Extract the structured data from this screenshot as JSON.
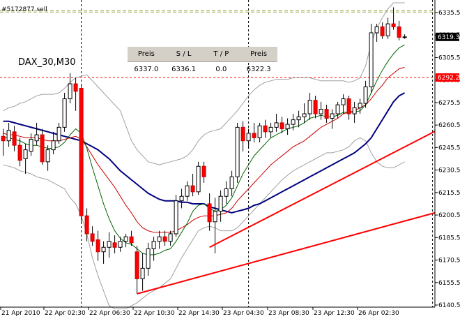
{
  "chart_data": {
    "type": "candlestick",
    "symbol": "DAX_30,M30",
    "order_label": "#5172877 sell",
    "ylim": [
      6137,
      6342
    ],
    "y_ticks": [
      6140.5,
      6155.5,
      6170.5,
      6185.5,
      6200.5,
      6215.5,
      6230.5,
      6245.5,
      6260.5,
      6275.5,
      6290.5,
      6305.5,
      6320.5,
      6335.5
    ],
    "y_tick_labels": [
      "6140.5",
      "6155.5",
      "6170.5",
      "6185.5",
      "6200.5",
      "6215.5",
      "6230.5",
      "6245.5",
      "6260.5",
      "6275.5",
      "6290.5",
      "6305.5",
      "6320.5",
      "6335.5"
    ],
    "x_labels": [
      "21 Apr 2010",
      "22 Apr 02:30",
      "22 Apr 06:30",
      "22 Apr 10:30",
      "22 Apr 14:30",
      "23 Apr 04:30",
      "23 Apr 08:30",
      "23 Apr 12:30",
      "26 Apr 02:30"
    ],
    "session_separator_bars": [
      14,
      44,
      77,
      100
    ],
    "current_price": 6319.3,
    "current_price_label": "6319.3",
    "sl_price": 6292.2,
    "sl_label": "6292.2",
    "entry_price": 6337.0,
    "candles": [
      {
        "o": 6253,
        "h": 6258,
        "l": 6240,
        "c": 6250
      },
      {
        "o": 6250,
        "h": 6262,
        "l": 6246,
        "c": 6257
      },
      {
        "o": 6256,
        "h": 6260,
        "l": 6243,
        "c": 6247
      },
      {
        "o": 6247,
        "h": 6252,
        "l": 6233,
        "c": 6237
      },
      {
        "o": 6238,
        "h": 6248,
        "l": 6228,
        "c": 6244
      },
      {
        "o": 6243,
        "h": 6255,
        "l": 6240,
        "c": 6251
      },
      {
        "o": 6250,
        "h": 6262,
        "l": 6247,
        "c": 6254
      },
      {
        "o": 6254,
        "h": 6258,
        "l": 6234,
        "c": 6236
      },
      {
        "o": 6236,
        "h": 6247,
        "l": 6230,
        "c": 6244
      },
      {
        "o": 6244,
        "h": 6256,
        "l": 6241,
        "c": 6250
      },
      {
        "o": 6250,
        "h": 6262,
        "l": 6248,
        "c": 6259
      },
      {
        "o": 6259,
        "h": 6282,
        "l": 6256,
        "c": 6278
      },
      {
        "o": 6278,
        "h": 6295,
        "l": 6275,
        "c": 6288
      },
      {
        "o": 6288,
        "h": 6292,
        "l": 6270,
        "c": 6283
      },
      {
        "o": 6285,
        "h": 6287,
        "l": 6195,
        "c": 6200
      },
      {
        "o": 6200,
        "h": 6205,
        "l": 6183,
        "c": 6188
      },
      {
        "o": 6188,
        "h": 6193,
        "l": 6180,
        "c": 6183
      },
      {
        "o": 6184,
        "h": 6190,
        "l": 6170,
        "c": 6176
      },
      {
        "o": 6176,
        "h": 6183,
        "l": 6168,
        "c": 6179
      },
      {
        "o": 6179,
        "h": 6189,
        "l": 6172,
        "c": 6183
      },
      {
        "o": 6182,
        "h": 6187,
        "l": 6175,
        "c": 6179
      },
      {
        "o": 6179,
        "h": 6186,
        "l": 6176,
        "c": 6183
      },
      {
        "o": 6183,
        "h": 6188,
        "l": 6179,
        "c": 6186
      },
      {
        "o": 6186,
        "h": 6190,
        "l": 6180,
        "c": 6182
      },
      {
        "o": 6176,
        "h": 6180,
        "l": 6148,
        "c": 6158
      },
      {
        "o": 6158,
        "h": 6175,
        "l": 6150,
        "c": 6165
      },
      {
        "o": 6165,
        "h": 6182,
        "l": 6160,
        "c": 6178
      },
      {
        "o": 6178,
        "h": 6186,
        "l": 6170,
        "c": 6183
      },
      {
        "o": 6183,
        "h": 6190,
        "l": 6178,
        "c": 6186
      },
      {
        "o": 6186,
        "h": 6190,
        "l": 6180,
        "c": 6183
      },
      {
        "o": 6183,
        "h": 6190,
        "l": 6180,
        "c": 6188
      },
      {
        "o": 6188,
        "h": 6214,
        "l": 6186,
        "c": 6210
      },
      {
        "o": 6210,
        "h": 6218,
        "l": 6205,
        "c": 6213
      },
      {
        "o": 6213,
        "h": 6223,
        "l": 6210,
        "c": 6220
      },
      {
        "o": 6220,
        "h": 6228,
        "l": 6213,
        "c": 6216
      },
      {
        "o": 6216,
        "h": 6236,
        "l": 6214,
        "c": 6233
      },
      {
        "o": 6233,
        "h": 6236,
        "l": 6222,
        "c": 6226
      },
      {
        "o": 6208,
        "h": 6215,
        "l": 6190,
        "c": 6196
      },
      {
        "o": 6196,
        "h": 6212,
        "l": 6175,
        "c": 6203
      },
      {
        "o": 6203,
        "h": 6217,
        "l": 6196,
        "c": 6213
      },
      {
        "o": 6213,
        "h": 6223,
        "l": 6208,
        "c": 6218
      },
      {
        "o": 6218,
        "h": 6230,
        "l": 6213,
        "c": 6226
      },
      {
        "o": 6226,
        "h": 6262,
        "l": 6222,
        "c": 6259
      },
      {
        "o": 6259,
        "h": 6263,
        "l": 6243,
        "c": 6250
      },
      {
        "o": 6250,
        "h": 6258,
        "l": 6245,
        "c": 6255
      },
      {
        "o": 6255,
        "h": 6262,
        "l": 6249,
        "c": 6252
      },
      {
        "o": 6252,
        "h": 6262,
        "l": 6249,
        "c": 6260
      },
      {
        "o": 6260,
        "h": 6264,
        "l": 6252,
        "c": 6256
      },
      {
        "o": 6256,
        "h": 6262,
        "l": 6252,
        "c": 6259
      },
      {
        "o": 6259,
        "h": 6268,
        "l": 6256,
        "c": 6262
      },
      {
        "o": 6262,
        "h": 6266,
        "l": 6255,
        "c": 6258
      },
      {
        "o": 6258,
        "h": 6265,
        "l": 6254,
        "c": 6261
      },
      {
        "o": 6261,
        "h": 6268,
        "l": 6257,
        "c": 6264
      },
      {
        "o": 6264,
        "h": 6270,
        "l": 6259,
        "c": 6266
      },
      {
        "o": 6266,
        "h": 6275,
        "l": 6262,
        "c": 6268
      },
      {
        "o": 6268,
        "h": 6282,
        "l": 6264,
        "c": 6277
      },
      {
        "o": 6277,
        "h": 6280,
        "l": 6265,
        "c": 6268
      },
      {
        "o": 6268,
        "h": 6276,
        "l": 6264,
        "c": 6271
      },
      {
        "o": 6271,
        "h": 6274,
        "l": 6262,
        "c": 6265
      },
      {
        "o": 6265,
        "h": 6271,
        "l": 6258,
        "c": 6268
      },
      {
        "o": 6268,
        "h": 6276,
        "l": 6265,
        "c": 6274
      },
      {
        "o": 6274,
        "h": 6281,
        "l": 6268,
        "c": 6278
      },
      {
        "o": 6278,
        "h": 6280,
        "l": 6264,
        "c": 6268
      },
      {
        "o": 6268,
        "h": 6276,
        "l": 6262,
        "c": 6272
      },
      {
        "o": 6272,
        "h": 6278,
        "l": 6268,
        "c": 6275
      },
      {
        "o": 6275,
        "h": 6290,
        "l": 6272,
        "c": 6286
      },
      {
        "o": 6286,
        "h": 6328,
        "l": 6282,
        "c": 6322
      },
      {
        "o": 6322,
        "h": 6328,
        "l": 6316,
        "c": 6326
      },
      {
        "o": 6326,
        "h": 6329,
        "l": 6318,
        "c": 6320
      },
      {
        "o": 6320,
        "h": 6332,
        "l": 6318,
        "c": 6328
      },
      {
        "o": 6328,
        "h": 6339,
        "l": 6324,
        "c": 6326
      },
      {
        "o": 6326,
        "h": 6330,
        "l": 6317,
        "c": 6319
      },
      {
        "o": 6319.3,
        "h": 6321,
        "l": 6318,
        "c": 6319.3
      }
    ],
    "series": [
      {
        "color": "#000080",
        "values": [
          6263,
          6263,
          6262,
          6261,
          6260,
          6259,
          6258,
          6257,
          6256,
          6255,
          6254,
          6253,
          6252,
          6251,
          6250,
          6248,
          6246,
          6244,
          6241,
          6238,
          6234,
          6230,
          6227,
          6224,
          6221,
          6218,
          6215,
          6213,
          6211,
          6210,
          6210,
          6210,
          6209,
          6209,
          6208,
          6208,
          6208,
          6206,
          6205,
          6204,
          6203,
          6202,
          6203,
          6204,
          6205,
          6207,
          6208,
          6210,
          6212,
          6214,
          6216,
          6218,
          6220,
          6222,
          6224,
          6226,
          6228,
          6230,
          6232,
          6234,
          6236,
          6238,
          6240,
          6242,
          6245,
          6248,
          6252,
          6258,
          6264,
          6270,
          6276,
          6280,
          6282
        ]
      },
      {
        "color": "#cc0000",
        "values": [
          6255,
          6254,
          6254,
          6253,
          6252,
          6252,
          6252,
          6251,
          6250,
          6250,
          6250,
          6251,
          6252,
          6253,
          6251,
          6246,
          6240,
          6234,
          6229,
          6224,
          6219,
          6213,
          6207,
          6202,
          6196,
          6192,
          6190,
          6189,
          6189,
          6189,
          6189,
          6190,
          6192,
          6194,
          6197,
          6199,
          6200,
          6200,
          6200,
          6201,
          6202,
          6205,
          6210,
          6214,
          6218,
          6222,
          6226,
          6230,
          6234,
          6237,
          6240,
          6243,
          6246,
          6248,
          6250,
          6253,
          6256,
          6259,
          6261,
          6263,
          6265,
          6268,
          6269,
          6270,
          6272,
          6274,
          6278,
          6283,
          6287,
          6292,
          6295,
          6298,
          6299
        ]
      },
      {
        "color": "#006400",
        "values": [
          6252,
          6252,
          6251,
          6250,
          6248,
          6247,
          6247,
          6246,
          6245,
          6245,
          6246,
          6249,
          6254,
          6258,
          6255,
          6245,
          6232,
          6220,
          6208,
          6198,
          6190,
          6185,
          6182,
          6181,
          6178,
          6175,
          6174,
          6174,
          6175,
          6177,
          6178,
          6183,
          6189,
          6195,
          6203,
          6207,
          6208,
          6205,
          6203,
          6204,
          6207,
          6212,
          6220,
          6228,
          6234,
          6240,
          6244,
          6248,
          6252,
          6254,
          6256,
          6258,
          6259,
          6260,
          6262,
          6265,
          6266,
          6267,
          6266,
          6266,
          6267,
          6269,
          6269,
          6269,
          6270,
          6274,
          6282,
          6290,
          6297,
          6303,
          6308,
          6312,
          6314
        ]
      },
      {
        "color": "#a0a0a0",
        "values": [
          6270,
          6272,
          6273,
          6275,
          6276,
          6278,
          6280,
          6281,
          6281,
          6281,
          6282,
          6285,
          6289,
          6292,
          6293,
          6294,
          6290,
          6286,
          6282,
          6278,
          6274,
          6270,
          6260,
          6250,
          6244,
          6240,
          6236,
          6235,
          6234,
          6235,
          6236,
          6237,
          6238,
          6240,
          6244,
          6250,
          6254,
          6256,
          6257,
          6258,
          6262,
          6266,
          6270,
          6275,
          6280,
          6284,
          6287,
          6289,
          6290,
          6291,
          6291,
          6291,
          6292,
          6292,
          6292,
          6292,
          6291,
          6290,
          6290,
          6290,
          6290,
          6290,
          6289,
          6290,
          6292,
          6300,
          6315,
          6325,
          6332,
          6338,
          6342,
          6342,
          6342
        ]
      },
      {
        "color": "#a0a0a0",
        "values": [
          6234,
          6233,
          6232,
          6230,
          6229,
          6228,
          6226,
          6225,
          6224,
          6222,
          6220,
          6218,
          6212,
          6208,
          6200,
          6188,
          6172,
          6160,
          6150,
          6140,
          6138,
          6138,
          6138,
          6140,
          6142,
          6145,
          6148,
          6150,
          6152,
          6155,
          6158,
          6165,
          6172,
          6178,
          6184,
          6190,
          6192,
          6193,
          6192,
          6190,
          6190,
          6190,
          6192,
          6196,
          6200,
          6204,
          6208,
          6212,
          6216,
          6220,
          6224,
          6227,
          6230,
          6232,
          6234,
          6236,
          6238,
          6240,
          6242,
          6242,
          6243,
          6244,
          6246,
          6250,
          6252,
          6250,
          6242,
          6236,
          6233,
          6232,
          6232,
          6234,
          6236
        ]
      }
    ],
    "trendlines": [
      {
        "color": "#ff0000",
        "points": [
          [
            24,
            6148
          ],
          [
            117,
            6242
          ]
        ]
      },
      {
        "color": "#ff0000",
        "points": [
          [
            37,
            6179
          ],
          [
            117,
            6332
          ]
        ]
      }
    ],
    "order_panel": {
      "headers": [
        "Preis",
        "S / L",
        "T / P",
        "Preis"
      ],
      "values": [
        "6337.0",
        "6336.1",
        "0.0",
        "6322.3"
      ]
    }
  }
}
